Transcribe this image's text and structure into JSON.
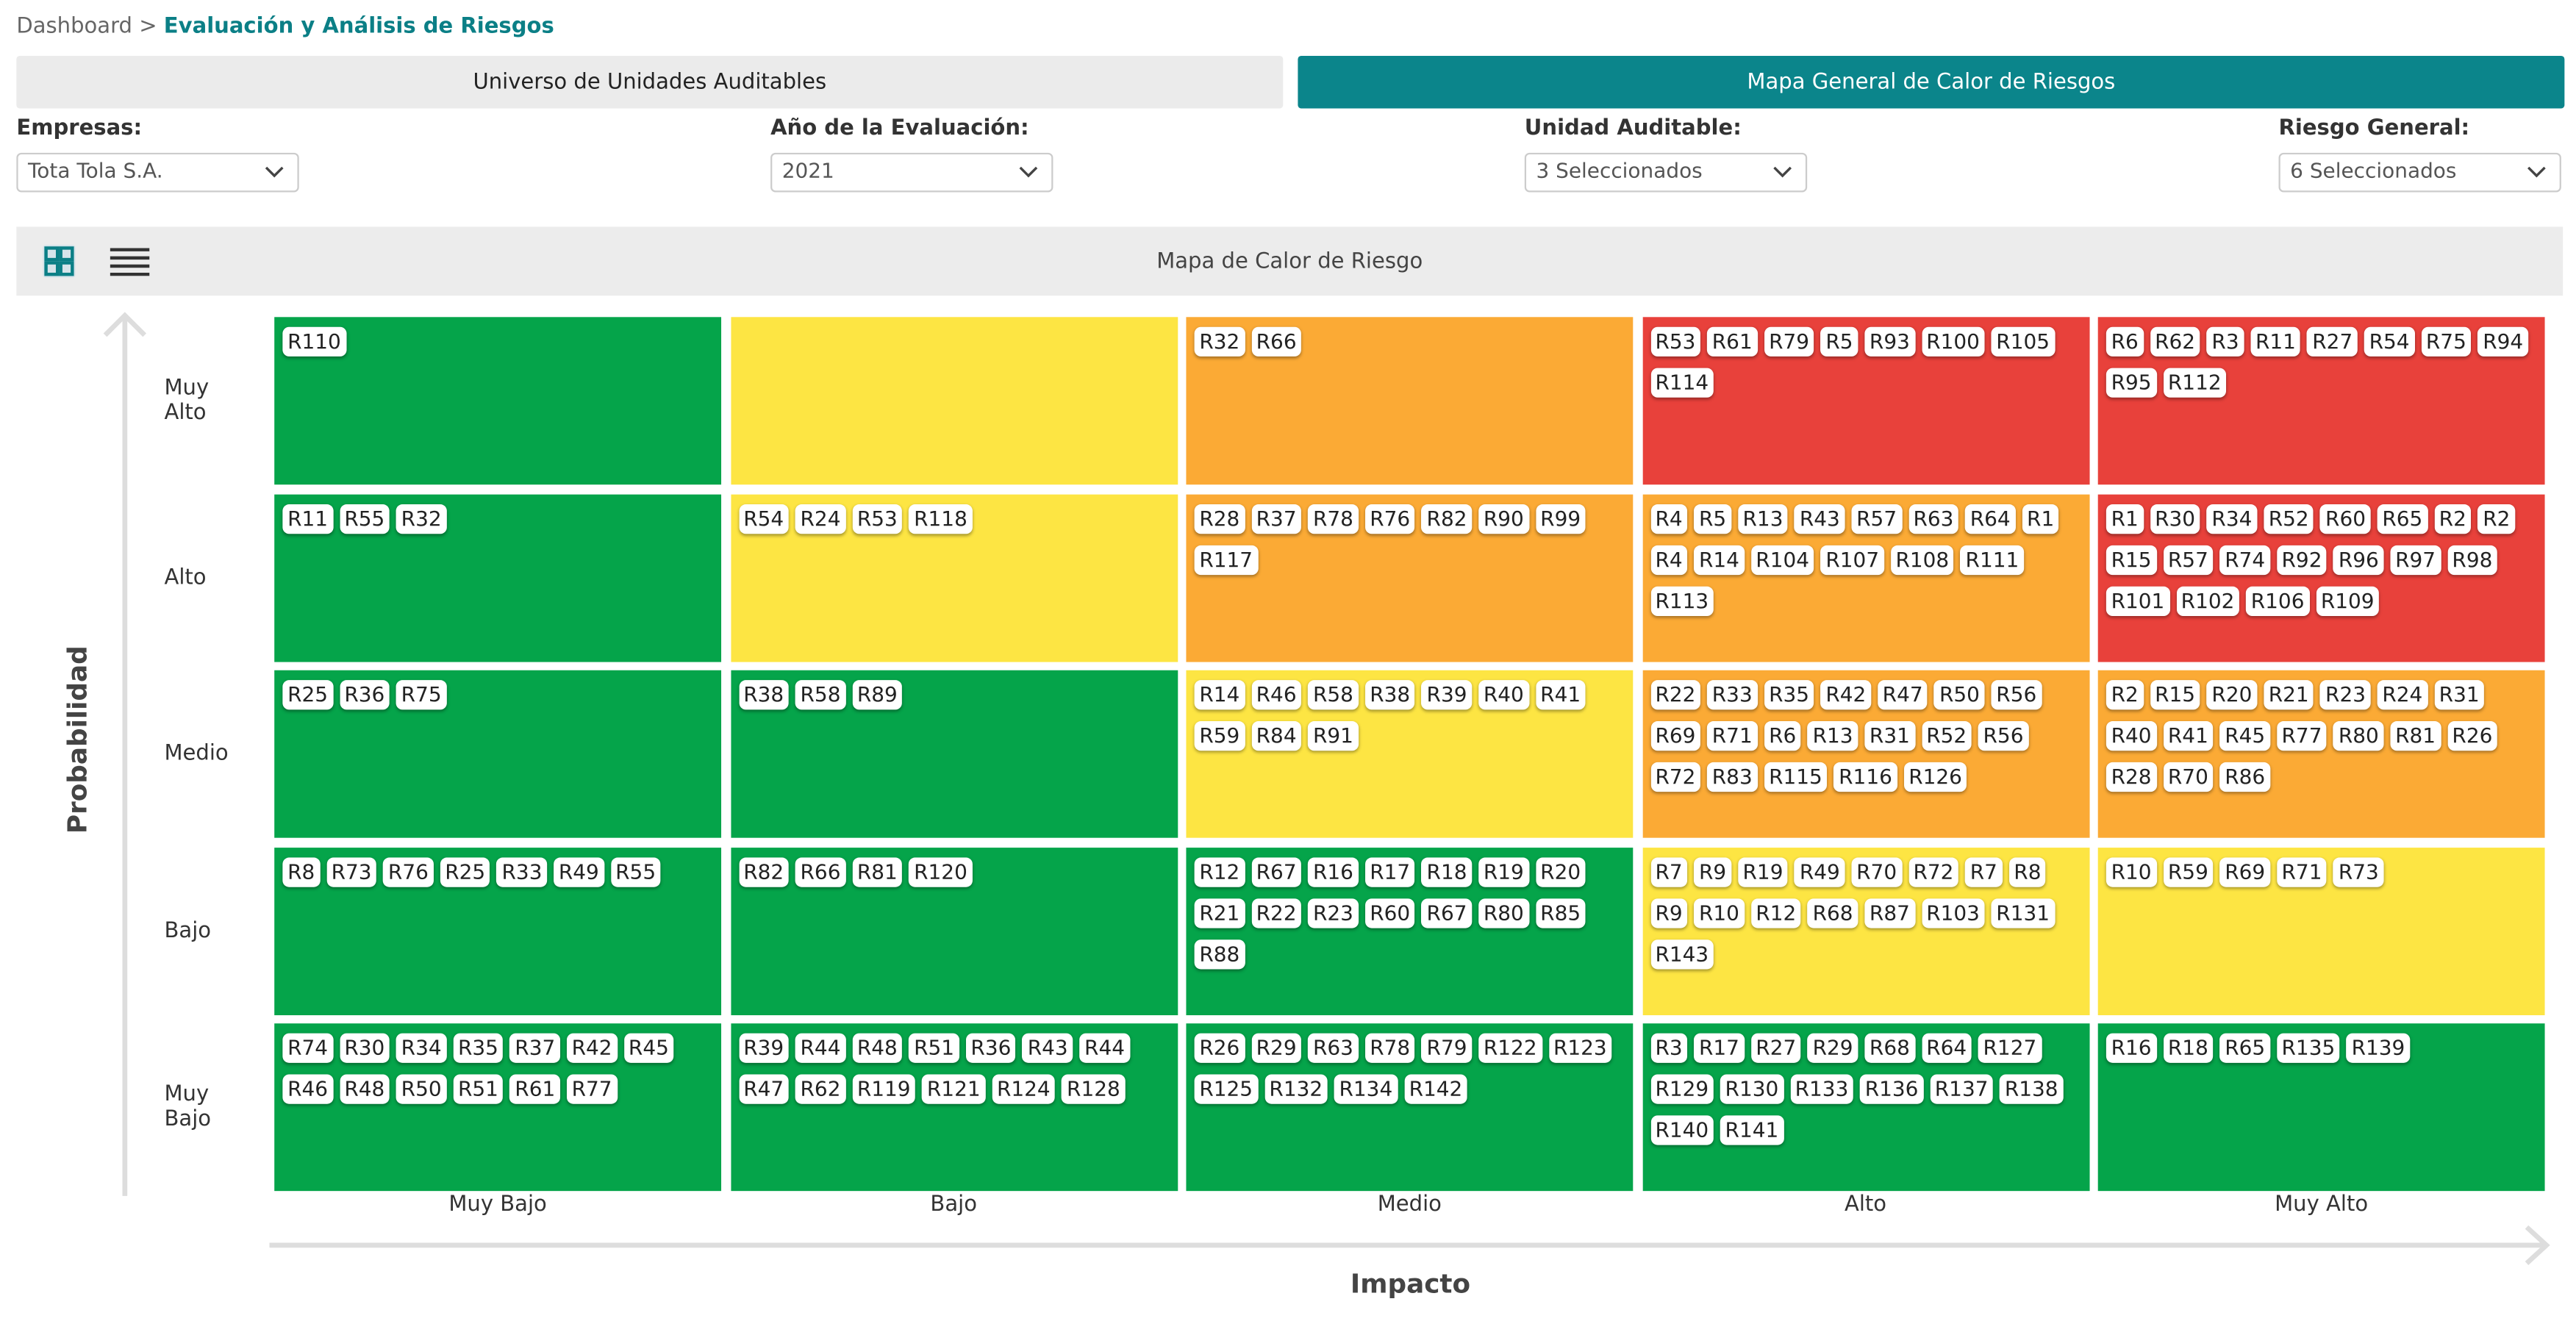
{
  "breadcrumb": {
    "root": "Dashboard >",
    "current": "Evaluación y Análisis de Riesgos"
  },
  "tabs": [
    "Universo de Unidades Auditables",
    "Mapa General de Calor de Riesgos"
  ],
  "filters": [
    {
      "label": "Empresas:",
      "value": "Tota Tola S.A."
    },
    {
      "label": "Año de la Evaluación:",
      "value": "2021"
    },
    {
      "label": "Unidad Auditable:",
      "value": "3 Seleccionados"
    },
    {
      "label": "Riesgo General:",
      "value": "6 Seleccionados"
    }
  ],
  "heatmap": {
    "title": "Mapa de Calor de Riesgo",
    "y_label": "Probabilidad",
    "x_label": "Impacto",
    "rows": [
      "Muy Alto",
      "Alto",
      "Medio",
      "Bajo",
      "Muy Bajo"
    ],
    "columns": [
      "Muy Bajo",
      "Bajo",
      "Medio",
      "Alto",
      "Muy Alto"
    ],
    "cells": [
      [
        {
          "color": "#05a44a",
          "risks": [
            "R110"
          ]
        },
        {
          "color": "#fde543",
          "risks": []
        },
        {
          "color": "#fbaa35",
          "risks": [
            "R32",
            "R66"
          ]
        },
        {
          "color": "#e8413b",
          "risks": [
            "R53",
            "R61",
            "R79",
            "R5",
            "R93",
            "R100",
            "R105",
            "R114"
          ]
        },
        {
          "color": "#e8413b",
          "risks": [
            "R6",
            "R62",
            "R3",
            "R11",
            "R27",
            "R54",
            "R75",
            "R94",
            "R95",
            "R112"
          ]
        }
      ],
      [
        {
          "color": "#05a44a",
          "risks": [
            "R11",
            "R55",
            "R32"
          ]
        },
        {
          "color": "#fde543",
          "risks": [
            "R54",
            "R24",
            "R53",
            "R118"
          ]
        },
        {
          "color": "#fbaa35",
          "risks": [
            "R28",
            "R37",
            "R78",
            "R76",
            "R82",
            "R90",
            "R99",
            "R117"
          ]
        },
        {
          "color": "#fbaa35",
          "risks": [
            "R4",
            "R5",
            "R13",
            "R43",
            "R57",
            "R63",
            "R64",
            "R1",
            "R4",
            "R14",
            "R104",
            "R107",
            "R108",
            "R111",
            "R113"
          ]
        },
        {
          "color": "#e8413b",
          "risks": [
            "R1",
            "R30",
            "R34",
            "R52",
            "R60",
            "R65",
            "R2",
            "R2",
            "R15",
            "R57",
            "R74",
            "R92",
            "R96",
            "R97",
            "R98",
            "R101",
            "R102",
            "R106",
            "R109"
          ]
        }
      ],
      [
        {
          "color": "#05a44a",
          "risks": [
            "R25",
            "R36",
            "R75"
          ]
        },
        {
          "color": "#05a44a",
          "risks": [
            "R38",
            "R58",
            "R89"
          ]
        },
        {
          "color": "#fde543",
          "risks": [
            "R14",
            "R46",
            "R58",
            "R38",
            "R39",
            "R40",
            "R41",
            "R59",
            "R84",
            "R91"
          ]
        },
        {
          "color": "#fbaa35",
          "risks": [
            "R22",
            "R33",
            "R35",
            "R42",
            "R47",
            "R50",
            "R56",
            "R69",
            "R71",
            "R6",
            "R13",
            "R31",
            "R52",
            "R56",
            "R72",
            "R83",
            "R115",
            "R116",
            "R126"
          ]
        },
        {
          "color": "#fbaa35",
          "risks": [
            "R2",
            "R15",
            "R20",
            "R21",
            "R23",
            "R24",
            "R31",
            "R40",
            "R41",
            "R45",
            "R77",
            "R80",
            "R81",
            "R26",
            "R28",
            "R70",
            "R86"
          ]
        }
      ],
      [
        {
          "color": "#05a44a",
          "risks": [
            "R8",
            "R73",
            "R76",
            "R25",
            "R33",
            "R49",
            "R55"
          ]
        },
        {
          "color": "#05a44a",
          "risks": [
            "R82",
            "R66",
            "R81",
            "R120"
          ]
        },
        {
          "color": "#05a44a",
          "risks": [
            "R12",
            "R67",
            "R16",
            "R17",
            "R18",
            "R19",
            "R20",
            "R21",
            "R22",
            "R23",
            "R60",
            "R67",
            "R80",
            "R85",
            "R88"
          ]
        },
        {
          "color": "#fde543",
          "risks": [
            "R7",
            "R9",
            "R19",
            "R49",
            "R70",
            "R72",
            "R7",
            "R8",
            "R9",
            "R10",
            "R12",
            "R68",
            "R87",
            "R103",
            "R131",
            "R143"
          ]
        },
        {
          "color": "#fde543",
          "risks": [
            "R10",
            "R59",
            "R69",
            "R71",
            "R73"
          ]
        }
      ],
      [
        {
          "color": "#05a44a",
          "risks": [
            "R74",
            "R30",
            "R34",
            "R35",
            "R37",
            "R42",
            "R45",
            "R46",
            "R48",
            "R50",
            "R51",
            "R61",
            "R77"
          ]
        },
        {
          "color": "#05a44a",
          "risks": [
            "R39",
            "R44",
            "R48",
            "R51",
            "R36",
            "R43",
            "R44",
            "R47",
            "R62",
            "R119",
            "R121",
            "R124",
            "R128"
          ]
        },
        {
          "color": "#05a44a",
          "risks": [
            "R26",
            "R29",
            "R63",
            "R78",
            "R79",
            "R122",
            "R123",
            "R125",
            "R132",
            "R134",
            "R142"
          ]
        },
        {
          "color": "#05a44a",
          "risks": [
            "R3",
            "R17",
            "R27",
            "R29",
            "R68",
            "R64",
            "R127",
            "R129",
            "R130",
            "R133",
            "R136",
            "R137",
            "R138",
            "R140",
            "R141"
          ]
        },
        {
          "color": "#05a44a",
          "risks": [
            "R16",
            "R18",
            "R65",
            "R135",
            "R139"
          ]
        }
      ]
    ]
  }
}
